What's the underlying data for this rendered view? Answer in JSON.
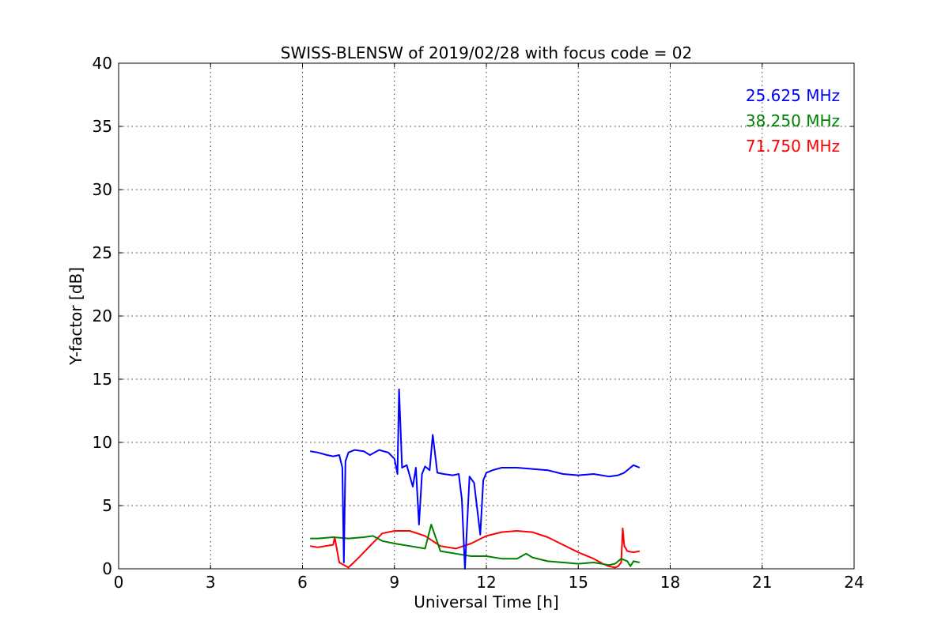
{
  "chart_data": {
    "type": "line",
    "title": "SWISS-BLENSW of 2019/02/28 with focus code = 02",
    "xlabel": "Universal Time [h]",
    "ylabel": "Y-factor [dB]",
    "xlim": [
      0,
      24
    ],
    "ylim": [
      0,
      40
    ],
    "xticks": [
      0,
      3,
      6,
      9,
      12,
      15,
      18,
      21,
      24
    ],
    "yticks": [
      0,
      5,
      10,
      15,
      20,
      25,
      30,
      35,
      40
    ],
    "grid": true,
    "legend_position": "top-right",
    "series": [
      {
        "name": "25.625 MHz",
        "color": "#0000ff",
        "x": [
          6.25,
          6.5,
          6.8,
          7.0,
          7.2,
          7.3,
          7.35,
          7.4,
          7.5,
          7.7,
          8.0,
          8.2,
          8.5,
          8.8,
          9.0,
          9.1,
          9.15,
          9.25,
          9.4,
          9.6,
          9.7,
          9.8,
          9.9,
          10.0,
          10.15,
          10.25,
          10.4,
          10.6,
          10.9,
          11.1,
          11.2,
          11.3,
          11.45,
          11.6,
          11.8,
          11.9,
          12.0,
          12.2,
          12.5,
          13.0,
          13.5,
          14.0,
          14.5,
          15.0,
          15.5,
          16.0,
          16.3,
          16.5,
          16.8,
          17.0
        ],
        "y": [
          9.3,
          9.2,
          9.0,
          8.9,
          9.0,
          8.0,
          0.5,
          8.5,
          9.2,
          9.4,
          9.3,
          9.0,
          9.4,
          9.2,
          8.7,
          7.5,
          14.2,
          8.0,
          8.2,
          6.5,
          8.0,
          3.5,
          7.5,
          8.1,
          7.8,
          10.6,
          7.6,
          7.5,
          7.4,
          7.5,
          5.5,
          0.0,
          7.3,
          6.8,
          2.7,
          7.0,
          7.6,
          7.8,
          8.0,
          8.0,
          7.9,
          7.8,
          7.5,
          7.4,
          7.5,
          7.3,
          7.4,
          7.6,
          8.2,
          8.0
        ]
      },
      {
        "name": "38.250 MHz",
        "color": "#008000",
        "x": [
          6.25,
          6.5,
          7.0,
          7.5,
          8.0,
          8.3,
          8.6,
          9.0,
          9.5,
          10.0,
          10.2,
          10.5,
          11.0,
          11.5,
          12.0,
          12.5,
          13.0,
          13.3,
          13.5,
          14.0,
          14.5,
          15.0,
          15.5,
          16.0,
          16.2,
          16.4,
          16.6,
          16.7,
          16.8,
          17.0
        ],
        "y": [
          2.4,
          2.4,
          2.5,
          2.4,
          2.5,
          2.6,
          2.2,
          2.0,
          1.8,
          1.6,
          3.5,
          1.4,
          1.2,
          1.0,
          1.0,
          0.8,
          0.8,
          1.2,
          0.9,
          0.6,
          0.5,
          0.4,
          0.5,
          0.3,
          0.4,
          0.8,
          0.6,
          0.2,
          0.6,
          0.5
        ]
      },
      {
        "name": "71.750 MHz",
        "color": "#ff0000",
        "x": [
          6.25,
          6.5,
          7.0,
          7.05,
          7.2,
          7.5,
          7.8,
          8.2,
          8.6,
          9.0,
          9.5,
          10.0,
          10.5,
          11.0,
          11.5,
          12.0,
          12.5,
          13.0,
          13.5,
          14.0,
          14.5,
          15.0,
          15.5,
          15.8,
          16.0,
          16.2,
          16.3,
          16.4,
          16.45,
          16.5,
          16.6,
          16.8,
          17.0
        ],
        "y": [
          1.8,
          1.7,
          1.9,
          2.5,
          0.5,
          0.1,
          0.8,
          1.8,
          2.8,
          3.0,
          3.0,
          2.6,
          1.8,
          1.6,
          2.0,
          2.6,
          2.9,
          3.0,
          2.9,
          2.5,
          1.9,
          1.3,
          0.8,
          0.4,
          0.2,
          0.1,
          0.2,
          0.5,
          3.2,
          1.8,
          1.4,
          1.3,
          1.4
        ]
      }
    ]
  }
}
